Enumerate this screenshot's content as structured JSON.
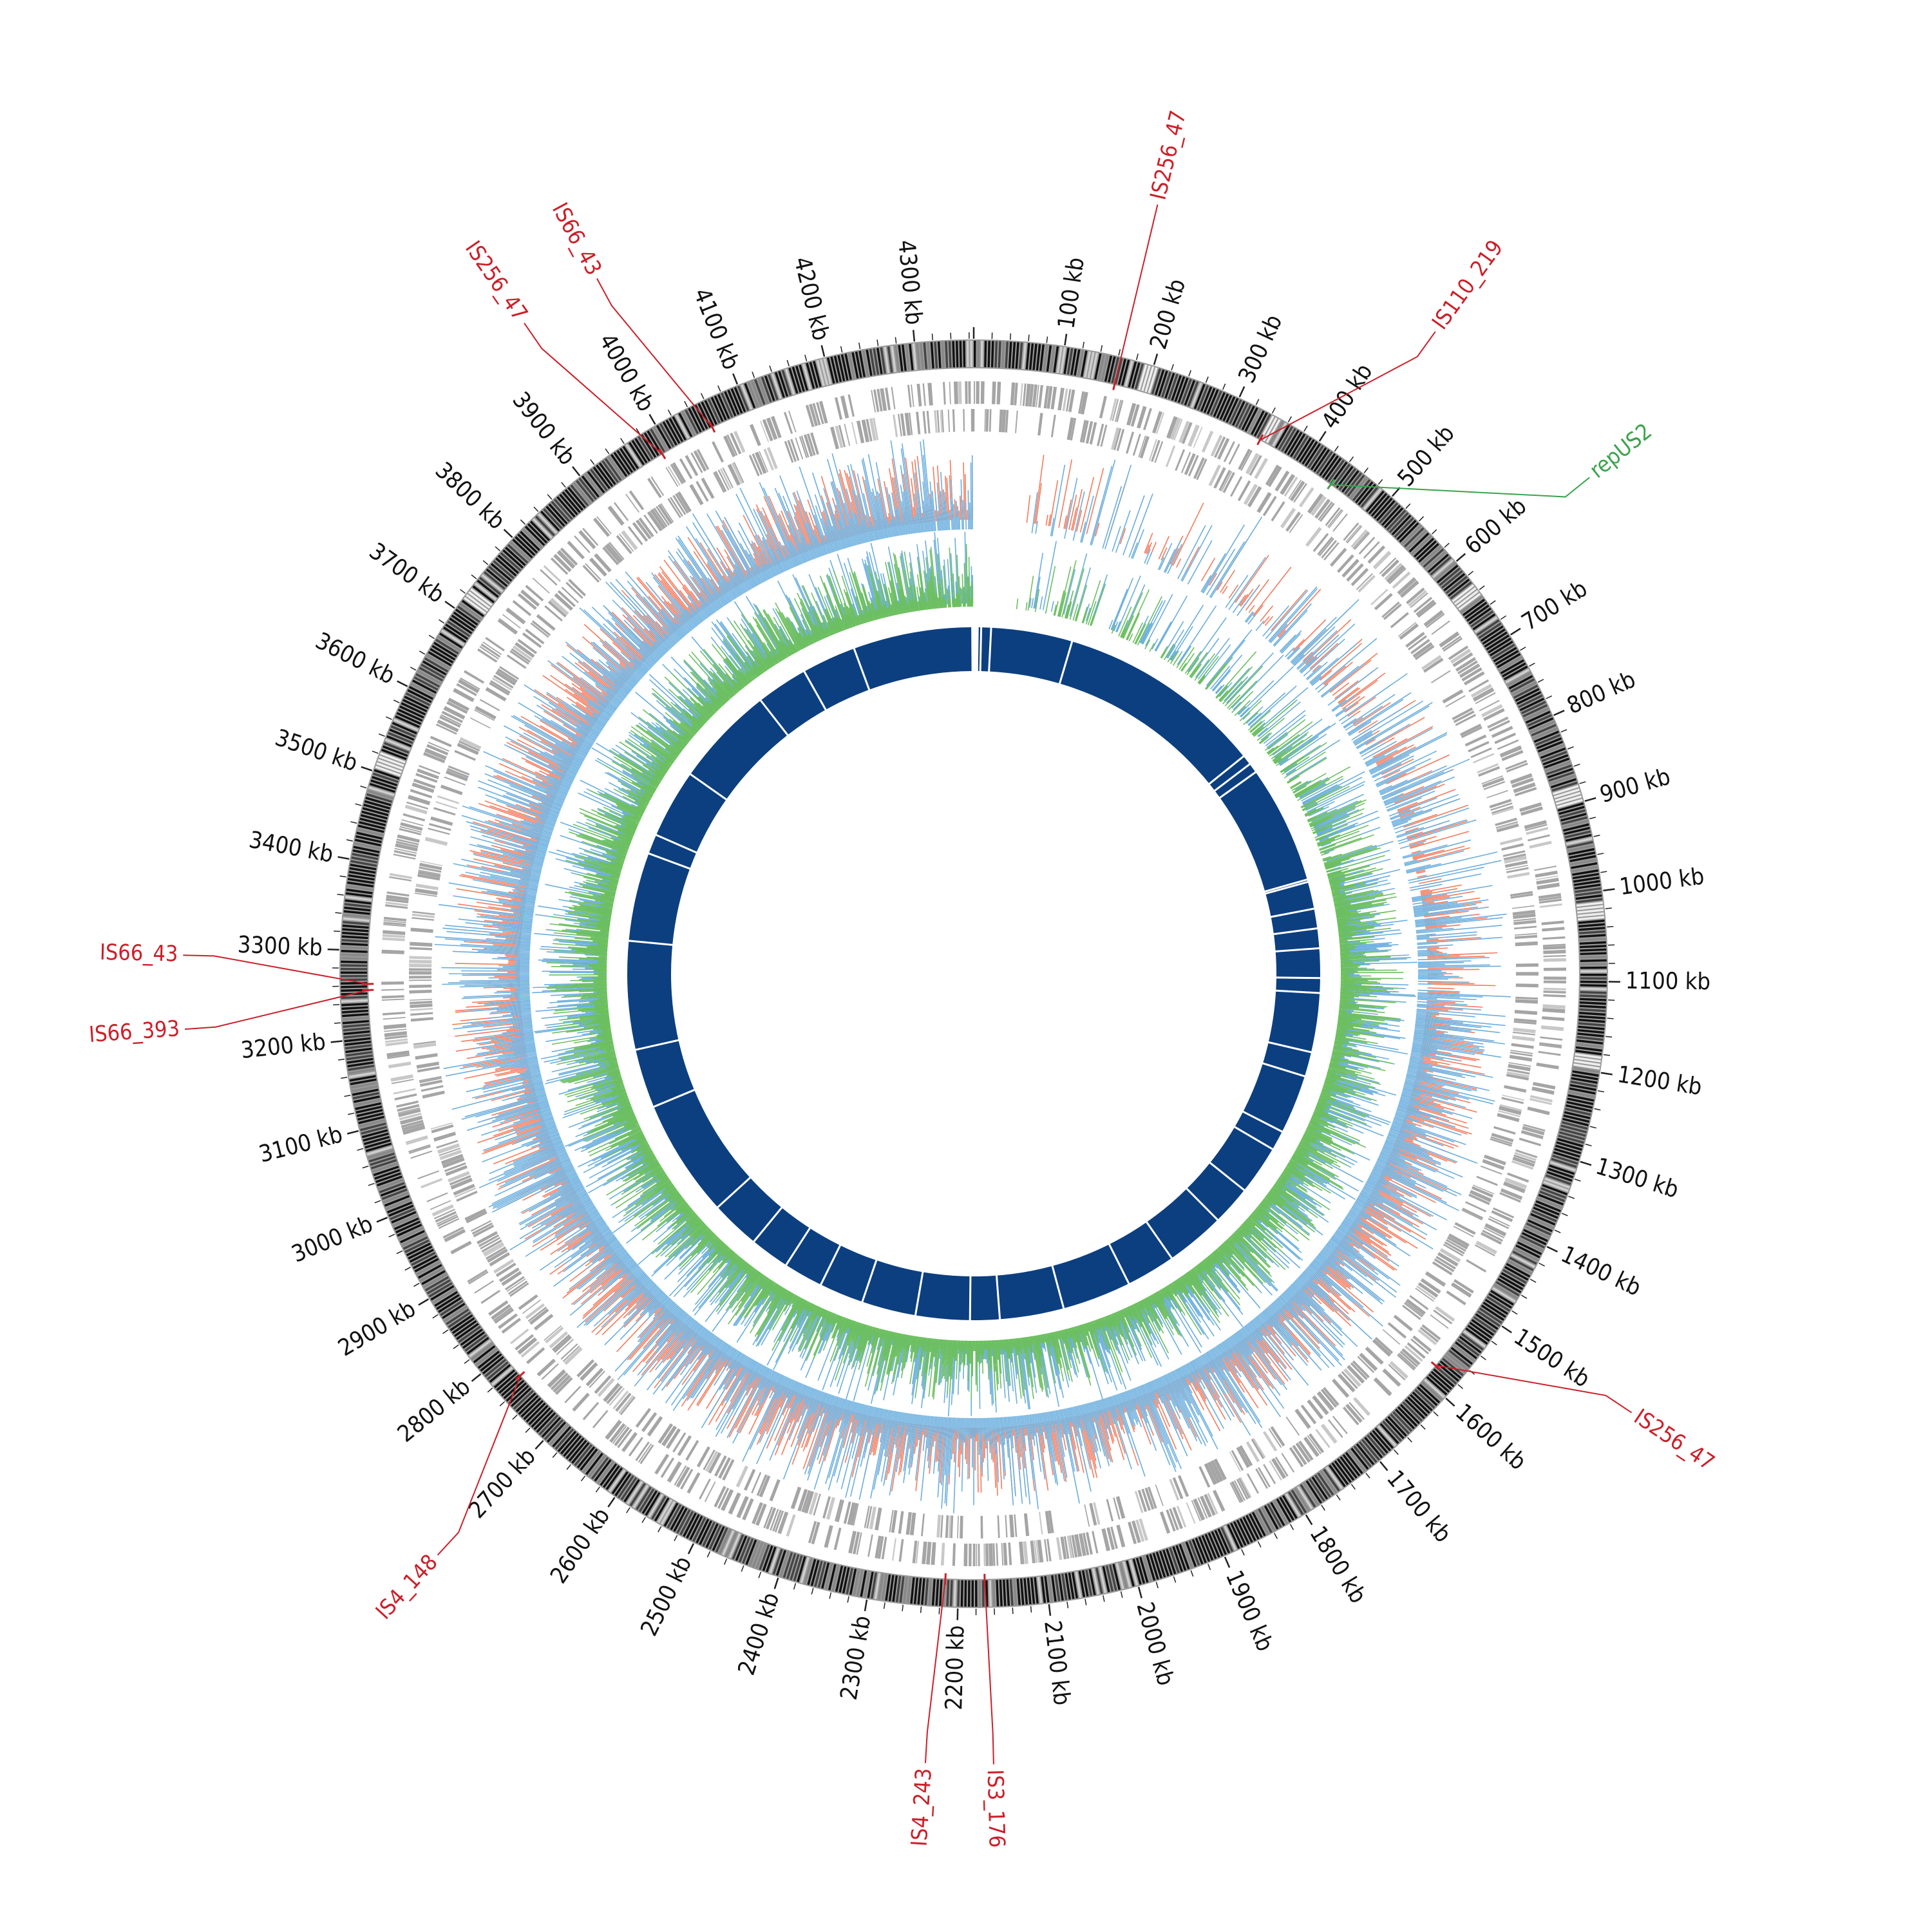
{
  "map": {
    "genome_kb": 4365,
    "unit": "kb",
    "colors": {
      "ideogram_dark": "#111111",
      "ideogram_light": "#e6e6e6",
      "genes": "#a5a5a5",
      "red_track": "#f47a5c",
      "blue_track": "#6aaede",
      "green_track": "#6cbf5f",
      "inner_ring": "#0c3f7f",
      "is_label": "#cc1f28",
      "rep_label": "#3aa34c"
    }
  },
  "ticks": [
    {
      "kb": 100,
      "label": "100 kb"
    },
    {
      "kb": 200,
      "label": "200 kb"
    },
    {
      "kb": 300,
      "label": "300 kb"
    },
    {
      "kb": 400,
      "label": "400 kb"
    },
    {
      "kb": 500,
      "label": "500 kb"
    },
    {
      "kb": 600,
      "label": "600 kb"
    },
    {
      "kb": 700,
      "label": "700 kb"
    },
    {
      "kb": 800,
      "label": "800 kb"
    },
    {
      "kb": 900,
      "label": "900 kb"
    },
    {
      "kb": 1000,
      "label": "1000 kb"
    },
    {
      "kb": 1100,
      "label": "1100 kb"
    },
    {
      "kb": 1200,
      "label": "1200 kb"
    },
    {
      "kb": 1300,
      "label": "1300 kb"
    },
    {
      "kb": 1400,
      "label": "1400 kb"
    },
    {
      "kb": 1500,
      "label": "1500 kb"
    },
    {
      "kb": 1600,
      "label": "1600 kb"
    },
    {
      "kb": 1700,
      "label": "1700 kb"
    },
    {
      "kb": 1800,
      "label": "1800 kb"
    },
    {
      "kb": 1900,
      "label": "1900 kb"
    },
    {
      "kb": 2000,
      "label": "2000 kb"
    },
    {
      "kb": 2100,
      "label": "2100 kb"
    },
    {
      "kb": 2200,
      "label": "2200 kb"
    },
    {
      "kb": 2300,
      "label": "2300 kb"
    },
    {
      "kb": 2400,
      "label": "2400 kb"
    },
    {
      "kb": 2500,
      "label": "2500 kb"
    },
    {
      "kb": 2600,
      "label": "2600 kb"
    },
    {
      "kb": 2700,
      "label": "2700 kb"
    },
    {
      "kb": 2800,
      "label": "2800 kb"
    },
    {
      "kb": 2900,
      "label": "2900 kb"
    },
    {
      "kb": 3000,
      "label": "3000 kb"
    },
    {
      "kb": 3100,
      "label": "3100 kb"
    },
    {
      "kb": 3200,
      "label": "3200 kb"
    },
    {
      "kb": 3300,
      "label": "3300 kb"
    },
    {
      "kb": 3400,
      "label": "3400 kb"
    },
    {
      "kb": 3500,
      "label": "3500 kb"
    },
    {
      "kb": 3600,
      "label": "3600 kb"
    },
    {
      "kb": 3700,
      "label": "3700 kb"
    },
    {
      "kb": 3800,
      "label": "3800 kb"
    },
    {
      "kb": 3900,
      "label": "3900 kb"
    },
    {
      "kb": 4000,
      "label": "4000 kb"
    },
    {
      "kb": 4100,
      "label": "4100 kb"
    },
    {
      "kb": 4200,
      "label": "4200 kb"
    },
    {
      "kb": 4300,
      "label": "4300 kb"
    }
  ],
  "insertion_sequences": [
    {
      "label": "IS256_47",
      "kb": 163,
      "label_kb": 163,
      "type": "is"
    },
    {
      "label": "IS110_219",
      "kb": 342,
      "label_kb": 433,
      "type": "is"
    },
    {
      "label": "repUS2",
      "kb": 438,
      "label_kb": 620,
      "type": "rep"
    },
    {
      "label": "IS256_47",
      "kb": 1580,
      "label_kb": 1500,
      "type": "is"
    },
    {
      "label": "IS3_176",
      "kb": 2170,
      "label_kb": 2165,
      "type": "is"
    },
    {
      "label": "IS4_243",
      "kb": 2215,
      "label_kb": 2225,
      "type": "is"
    },
    {
      "label": "IS4_148",
      "kb": 2770,
      "label_kb": 2700,
      "type": "is"
    },
    {
      "label": "IS66_393",
      "kb": 3255,
      "label_kb": 3225,
      "type": "is"
    },
    {
      "label": "IS66_43",
      "kb": 3262,
      "label_kb": 3290,
      "type": "is"
    },
    {
      "label": "IS256_47",
      "kb": 3990,
      "label_kb": 3945,
      "type": "is"
    },
    {
      "label": "IS66_43",
      "kb": 4055,
      "label_kb": 4020,
      "type": "is"
    }
  ],
  "inner_ring_gaps_kb": [
    15,
    35,
    200,
    620,
    640,
    660,
    900,
    905,
    960,
    1000,
    1040,
    1100,
    1130,
    1250,
    1300,
    1420,
    1460,
    1560,
    1640,
    1760,
    1860,
    2000,
    2130,
    2190,
    2300,
    2410,
    2500,
    2580,
    2660,
    2760,
    3000,
    3120,
    3340,
    3520,
    3560,
    3700,
    3905,
    4010,
    4120
  ]
}
